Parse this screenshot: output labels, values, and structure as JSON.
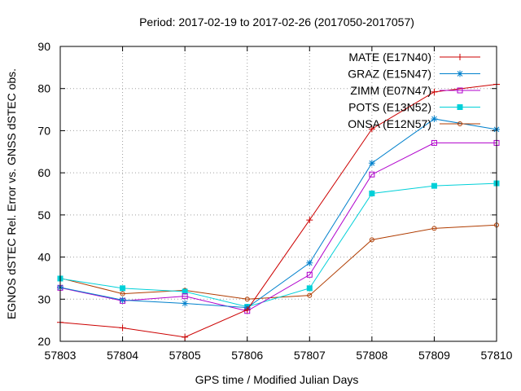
{
  "chart_data": {
    "type": "line",
    "title": "Period: 2017-02-19 to 2017-02-26 (2017050-2017057)",
    "xlabel": "GPS time / Modified Julian Days",
    "ylabel": "EGNOS dSTEC Rel. Error vs. GNSS dSTEC obs.",
    "xlim": [
      57803,
      57810
    ],
    "ylim": [
      20,
      90
    ],
    "x": [
      57803,
      57804,
      57805,
      57806,
      57807,
      57808,
      57809,
      57810
    ],
    "xticks": [
      "57803",
      "57804",
      "57805",
      "57806",
      "57807",
      "57808",
      "57809",
      "57810"
    ],
    "yticks": [
      "20",
      "30",
      "40",
      "50",
      "60",
      "70",
      "80",
      "90"
    ],
    "grid": true,
    "legend_position": "top-right",
    "series": [
      {
        "name": "MATE (E17N40)",
        "color": "#cc0000",
        "marker": "plus",
        "values": [
          24.5,
          23.2,
          21.0,
          27.5,
          48.8,
          70.4,
          79.2,
          81.0
        ]
      },
      {
        "name": "GRAZ (E15N47)",
        "color": "#0080cc",
        "marker": "star",
        "values": [
          32.8,
          29.8,
          29.0,
          28.0,
          38.6,
          62.3,
          72.8,
          70.3
        ]
      },
      {
        "name": "ZIMM (E07N47)",
        "color": "#b000cc",
        "marker": "open-square",
        "values": [
          32.7,
          29.6,
          30.7,
          27.2,
          35.8,
          59.6,
          67.1,
          67.1
        ]
      },
      {
        "name": "POTS (E13N52)",
        "color": "#00d0d8",
        "marker": "filled-square",
        "values": [
          34.9,
          32.6,
          31.8,
          28.2,
          32.6,
          55.1,
          56.9,
          57.5
        ]
      },
      {
        "name": "ONSA (E12N57)",
        "color": "#b03c00",
        "marker": "open-circle",
        "values": [
          35.0,
          31.3,
          32.1,
          30.0,
          30.9,
          44.1,
          46.8,
          47.6
        ]
      }
    ]
  }
}
